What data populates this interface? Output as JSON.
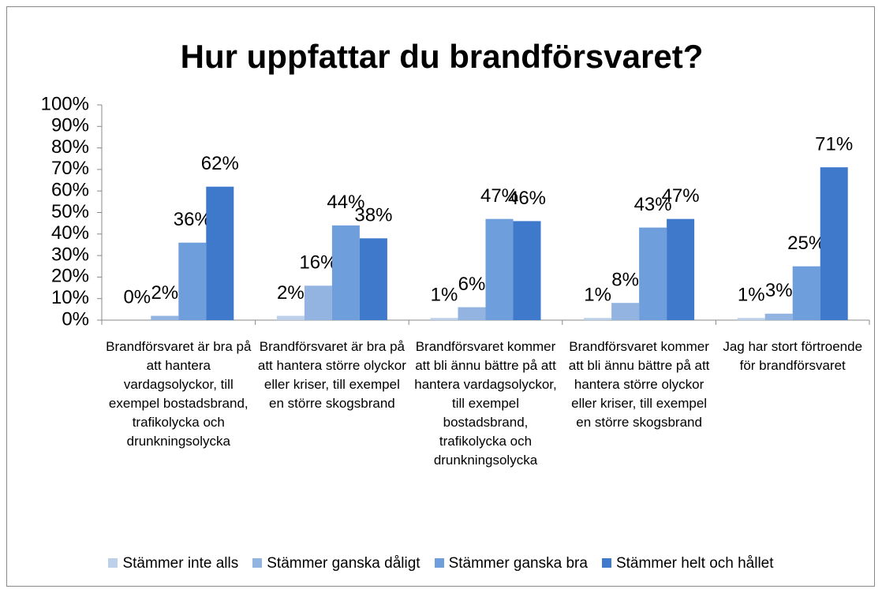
{
  "chart_data": {
    "type": "bar",
    "title": "Hur uppfattar du brandförsvaret?",
    "categories": [
      "Brandförsvaret är bra på att hantera vardagsolyckor, till exempel bostadsbrand, trafikolycka och drunkningsolycka",
      "Brandförsvaret är bra på att hantera större olyckor eller kriser, till exempel en större skogsbrand",
      "Brandförsvaret kommer att bli ännu bättre på att hantera vardagsolyckor, till exempel bostadsbrand, trafikolycka och drunkningsolycka",
      "Brandförsvaret kommer att bli ännu bättre på att hantera större olyckor eller kriser, till exempel en större skogsbrand",
      "Jag har stort förtroende för brandförsvaret"
    ],
    "series": [
      {
        "name": "Stämmer inte alls",
        "color": "#bcd0ea",
        "values": [
          0,
          2,
          1,
          1,
          1
        ],
        "value_labels": [
          "0%",
          "2%",
          "1%",
          "1%",
          "1%"
        ]
      },
      {
        "name": "Stämmer ganska dåligt",
        "color": "#93b4e0",
        "values": [
          2,
          16,
          6,
          8,
          3
        ],
        "value_labels": [
          "2%",
          "16%",
          "6%",
          "8%",
          "3%"
        ]
      },
      {
        "name": "Stämmer ganska bra",
        "color": "#6e9edc",
        "values": [
          36,
          44,
          47,
          43,
          25
        ],
        "value_labels": [
          "36%",
          "44%",
          "47%",
          "43%",
          "25%"
        ]
      },
      {
        "name": "Stämmer helt och hållet",
        "color": "#3e79cb",
        "values": [
          62,
          38,
          46,
          47,
          71
        ],
        "value_labels": [
          "62%",
          "38%",
          "46%",
          "47%",
          "71%"
        ]
      }
    ],
    "ylim": [
      0,
      100
    ],
    "yticks": [
      {
        "value": 0,
        "label": "0%"
      },
      {
        "value": 10,
        "label": "10%"
      },
      {
        "value": 20,
        "label": "20%"
      },
      {
        "value": 30,
        "label": "30%"
      },
      {
        "value": 40,
        "label": "40%"
      },
      {
        "value": 50,
        "label": "50%"
      },
      {
        "value": 60,
        "label": "60%"
      },
      {
        "value": 70,
        "label": "70%"
      },
      {
        "value": 80,
        "label": "80%"
      },
      {
        "value": 90,
        "label": "90%"
      },
      {
        "value": 100,
        "label": "100%"
      }
    ],
    "legend": "bottom"
  }
}
